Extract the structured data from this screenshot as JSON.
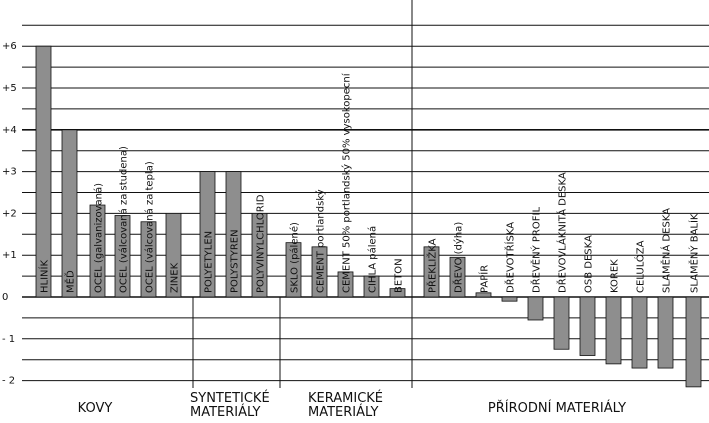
{
  "chart_data": {
    "type": "bar",
    "ylim": [
      -2.3,
      6.9
    ],
    "yticks": [
      {
        "value": 6,
        "label": "+6"
      },
      {
        "value": 5,
        "label": "+5"
      },
      {
        "value": 4,
        "label": "+4"
      },
      {
        "value": 3,
        "label": "+3"
      },
      {
        "value": 2,
        "label": "+2"
      },
      {
        "value": 1,
        "label": "+1"
      },
      {
        "value": 0,
        "label": "0"
      },
      {
        "value": -1,
        "label": "- 1"
      },
      {
        "value": -2,
        "label": "- 2"
      }
    ],
    "major_gridlines": [
      4,
      0
    ],
    "grid": true,
    "groups": [
      {
        "label_lines": [
          "KOVY"
        ],
        "start": 0,
        "end": 6
      },
      {
        "label_lines": [
          "SYNTETICKÉ",
          "MATERIÁLY"
        ],
        "start": 6,
        "end": 9
      },
      {
        "label_lines": [
          "KERAMICKÉ",
          "MATERIÁLY"
        ],
        "start": 9,
        "end": 14
      },
      {
        "label_lines": [
          "PŘÍRODNÍ MATERIÁLY"
        ],
        "start": 14,
        "end": 25
      }
    ],
    "categories": [
      "HLINÍK",
      "MĚĎ",
      "OCEL (galvanizovaná)",
      "OCEL (válcovaná za studena)",
      "OCEL (válcovaná za tepla)",
      "ZINEK",
      "POLYETYLEN",
      "POLYSTYREN",
      "POLYVINYLCHLORID",
      "SKLO (pálené)",
      "CEMENT portlandský",
      "CEMENT 50% portlandský 50% vysokopecní",
      "CIHLA pálená",
      "BETON",
      "PŘEKLIŽKA",
      "DŘEVO (dýha)",
      "PAPÍR",
      "DŘEVOTŘÍSKA",
      "DŘEVĚNÝ PROFIL",
      "DŘEVOVLÁKNITÁ DESKA",
      "OSB DESKA",
      "KOREK",
      "CELULÓZA",
      "SLAMĚNÁ DESKA",
      "SLAMĚNÝ BALÍK"
    ],
    "values": [
      6.0,
      4.0,
      2.2,
      1.95,
      1.8,
      2.0,
      3.0,
      3.0,
      2.0,
      1.3,
      1.2,
      0.6,
      0.5,
      0.2,
      1.2,
      0.95,
      0.1,
      -0.1,
      -0.55,
      -1.25,
      -1.4,
      -1.6,
      -1.7,
      -1.7,
      -2.15
    ]
  }
}
